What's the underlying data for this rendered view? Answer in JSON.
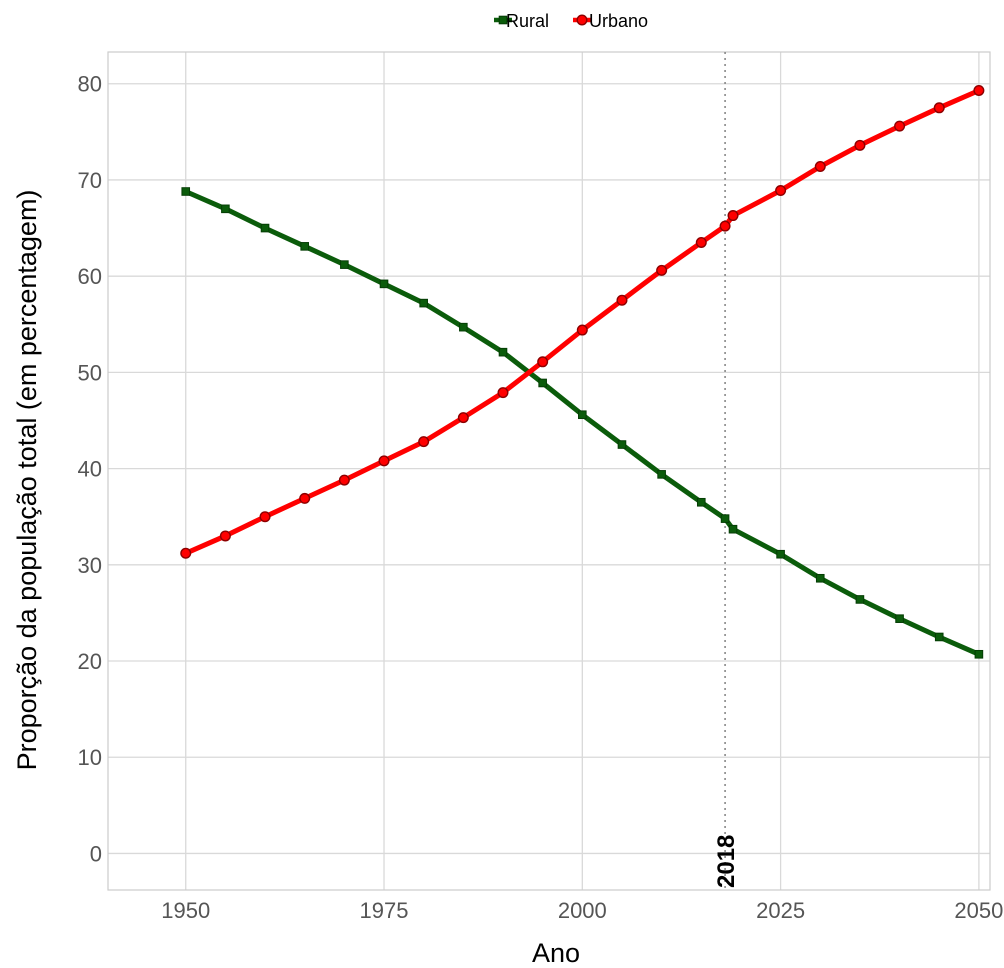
{
  "chart_data": {
    "type": "line",
    "title": "",
    "xlabel": "Ano",
    "ylabel": "Proporção da população total (em percentagem)",
    "x": [
      1950,
      1955,
      1960,
      1965,
      1970,
      1975,
      1980,
      1985,
      1990,
      1995,
      2000,
      2005,
      2010,
      2015,
      2018,
      2019,
      2025,
      2030,
      2035,
      2040,
      2045,
      2050
    ],
    "series": [
      {
        "name": "Rural",
        "color": "#0b5c0b",
        "marker": "square",
        "values": [
          68.8,
          67.0,
          65.0,
          63.1,
          61.2,
          59.2,
          57.2,
          54.7,
          52.1,
          48.9,
          45.6,
          42.5,
          39.4,
          36.5,
          34.8,
          33.7,
          31.1,
          28.6,
          26.4,
          24.4,
          22.5,
          20.7
        ]
      },
      {
        "name": "Urbano",
        "color": "#ff0000",
        "marker": "circle",
        "values": [
          31.2,
          33.0,
          35.0,
          36.9,
          38.8,
          40.8,
          42.8,
          45.3,
          47.9,
          51.1,
          54.4,
          57.5,
          60.6,
          63.5,
          65.2,
          66.3,
          68.9,
          71.4,
          73.6,
          75.6,
          77.5,
          79.3
        ]
      }
    ],
    "xlim": [
      1940.2,
      2051.4
    ],
    "ylim": [
      -3.8,
      83.3
    ],
    "xticks": [
      "1950",
      "1975",
      "2000",
      "2025",
      "2050"
    ],
    "yticks": [
      "0",
      "10",
      "20",
      "30",
      "40",
      "50",
      "60",
      "70",
      "80"
    ],
    "grid": true,
    "legend_position": "top",
    "annotation": {
      "x": 2018,
      "label": "2018",
      "line_style": "dotted"
    }
  }
}
